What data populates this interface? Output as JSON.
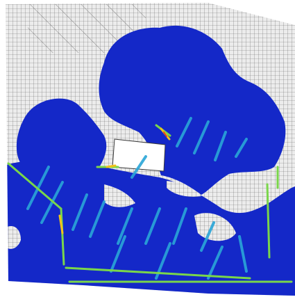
{
  "image": {
    "kind": "finite element mesh crack contour plot",
    "colors": {
      "background": "#ffffff",
      "mesh_fill": "#ececec",
      "mesh_line": "#6a6a6a",
      "damage_low": "#1428c8",
      "damage_mid": "#2aa6d8",
      "damage_high": "#7ad64a",
      "damage_peak": "#f2c21a",
      "damage_max": "#e0461c"
    }
  }
}
